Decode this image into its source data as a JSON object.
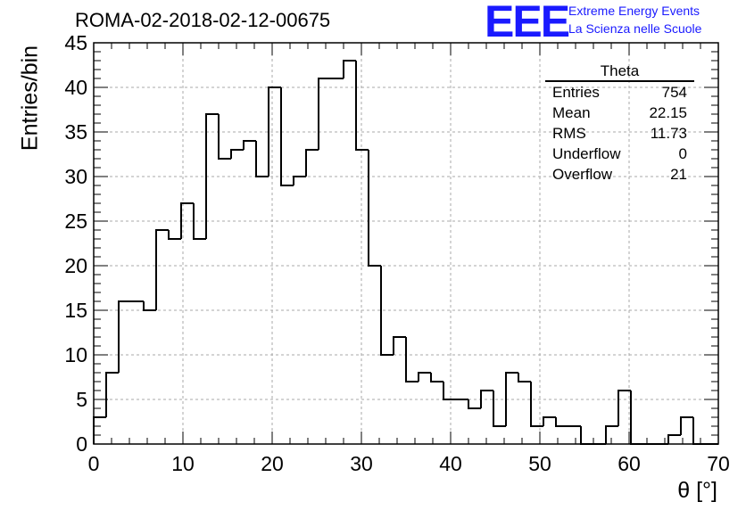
{
  "title": "ROMA-02-2018-02-12-00675",
  "logo": {
    "mark": "EEE",
    "line1": "Extreme Energy Events",
    "line2": "La Scienza nelle Scuole",
    "color": "#1a1aff"
  },
  "axes": {
    "xlabel": "θ [°]",
    "ylabel": "Entries/bin"
  },
  "stats": {
    "name": "Theta",
    "rows": [
      {
        "label": "Entries",
        "value": "754"
      },
      {
        "label": "Mean",
        "value": "22.15"
      },
      {
        "label": "RMS",
        "value": "11.73"
      },
      {
        "label": "Underflow",
        "value": "0"
      },
      {
        "label": "Overflow",
        "value": "21"
      }
    ]
  },
  "chart_data": {
    "type": "histogram",
    "title": "ROMA-02-2018-02-12-00675",
    "xlabel": "θ [°]",
    "ylabel": "Entries/bin",
    "xlim": [
      0,
      70
    ],
    "ylim": [
      0,
      45
    ],
    "bin_width": 1.4,
    "bin_start": 0,
    "values": [
      3,
      8,
      16,
      16,
      15,
      24,
      23,
      27,
      23,
      37,
      32,
      33,
      34,
      30,
      40,
      29,
      30,
      33,
      41,
      41,
      43,
      33,
      20,
      10,
      12,
      7,
      8,
      7,
      5,
      5,
      4,
      6,
      2,
      8,
      7,
      2,
      3,
      2,
      2,
      0,
      0,
      2,
      6,
      0,
      0,
      0,
      1,
      3,
      0,
      0
    ],
    "x_ticks": [
      0,
      10,
      20,
      30,
      40,
      50,
      60,
      70
    ],
    "y_ticks": [
      0,
      5,
      10,
      15,
      20,
      25,
      30,
      35,
      40,
      45
    ],
    "grid": true,
    "line_color": "#000000",
    "stats_box_position": "top-right"
  }
}
